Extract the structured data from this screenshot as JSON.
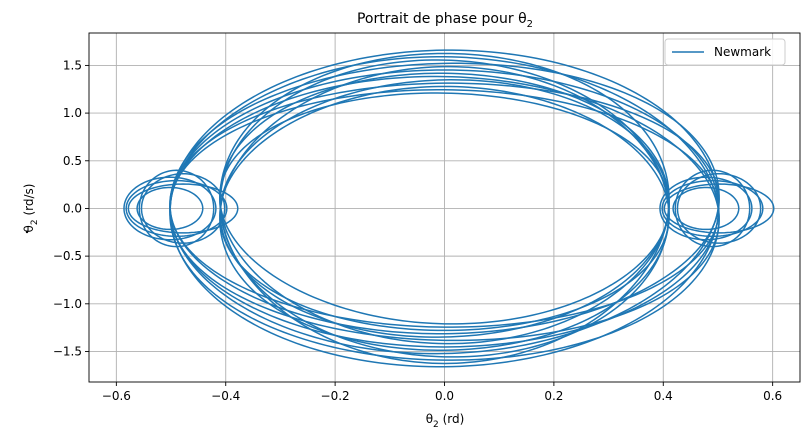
{
  "chart_data": {
    "type": "line",
    "title": "Portrait de phase pour θ",
    "title_subscript": "2",
    "xlabel": "θ",
    "xlabel_subscript": "2",
    "xlabel_unit": " (rd)",
    "ylabel": "θ",
    "ylabel_subscript": "2",
    "ylabel_unit": " (rd/s)",
    "xlim": [
      -0.65,
      0.65
    ],
    "ylim": [
      -1.82,
      1.84
    ],
    "x_ticks": [
      -0.6,
      -0.4,
      -0.2,
      0.0,
      0.2,
      0.4,
      0.6
    ],
    "x_tick_labels": [
      "−0.6",
      "−0.4",
      "−0.2",
      "0.0",
      "0.2",
      "0.4",
      "0.6"
    ],
    "y_ticks": [
      -1.5,
      -1.0,
      -0.5,
      0.0,
      0.5,
      1.0,
      1.5
    ],
    "y_tick_labels": [
      "−1.5",
      "−1.0",
      "−0.5",
      "0.0",
      "0.5",
      "1.0",
      "1.5"
    ],
    "grid": true,
    "legend_position": "top-right",
    "series": [
      {
        "name": "Newmark",
        "color": "#1f77b4",
        "outer_orbit": {
          "amplitude_x_range": [
            0.41,
            0.58
          ],
          "amplitude_y_range": [
            1.21,
            1.66
          ],
          "loops": 14
        },
        "side_loops": [
          {
            "center_x": -0.49,
            "center_y": 0.0,
            "radius_x_range": [
              0.06,
              0.1
            ],
            "radius_y_range": [
              0.22,
              0.4
            ],
            "loops": 6
          },
          {
            "center_x": 0.49,
            "center_y": 0.0,
            "radius_x_range": [
              0.06,
              0.1
            ],
            "radius_y_range": [
              0.22,
              0.4
            ],
            "loops": 6
          }
        ]
      }
    ]
  }
}
